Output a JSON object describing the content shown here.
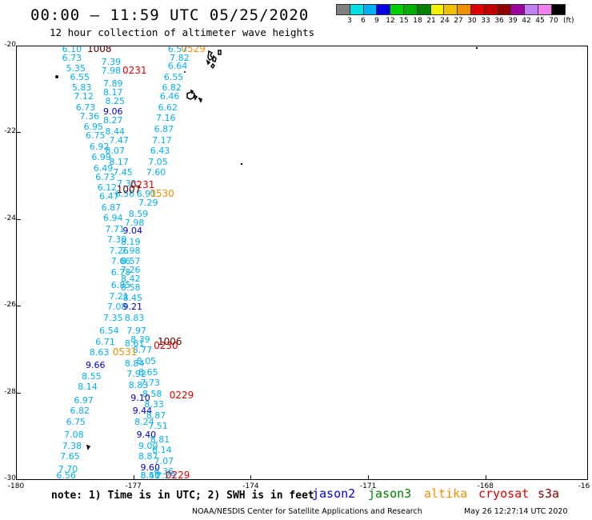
{
  "header": {
    "title": "00:00 – 11:59 UTC 05/25/2020",
    "subtitle": "12 hour collection of altimeter wave heights"
  },
  "colorbar": {
    "unit": "(ft)",
    "colors": [
      "#808080",
      "#00e0e0",
      "#00b0f0",
      "#0000e0",
      "#00d000",
      "#00b000",
      "#008000",
      "#f0f000",
      "#f0c000",
      "#f09000",
      "#e00000",
      "#c00000",
      "#900000",
      "#a000a0",
      "#c080f0",
      "#f080f0",
      "#000000"
    ],
    "labels": [
      "3",
      "6",
      "9",
      "12",
      "15",
      "18",
      "21",
      "24",
      "27",
      "30",
      "33",
      "36",
      "39",
      "42",
      "45",
      "70"
    ]
  },
  "map": {
    "lat_ticks": [
      "-20",
      "-22",
      "-24",
      "-26",
      "-28",
      "-30"
    ],
    "lon_ticks": [
      "-180",
      "-177",
      "-174",
      "-171",
      "-168",
      "-16"
    ],
    "lon_range": [
      -180,
      -165
    ],
    "lat_range": [
      -30,
      -20
    ]
  },
  "observations": [
    {
      "v": "6.10",
      "c": "#00b0f0",
      "lon": -178.8,
      "lat": -20.05
    },
    {
      "v": "6.73",
      "c": "#00b0f0",
      "lon": -178.8,
      "lat": -20.25
    },
    {
      "v": "5.35",
      "c": "#00b0f0",
      "lon": -178.7,
      "lat": -20.5
    },
    {
      "v": "6.55",
      "c": "#00b0f0",
      "lon": -178.6,
      "lat": -20.7
    },
    {
      "v": "5.83",
      "c": "#00b0f0",
      "lon": -178.55,
      "lat": -20.95
    },
    {
      "v": "7.12",
      "c": "#00b0f0",
      "lon": -178.5,
      "lat": -21.15
    },
    {
      "v": "6.73",
      "c": "#00b0f0",
      "lon": -178.45,
      "lat": -21.4
    },
    {
      "v": "7.36",
      "c": "#00b0f0",
      "lon": -178.35,
      "lat": -21.6
    },
    {
      "v": "6.95",
      "c": "#00b0f0",
      "lon": -178.25,
      "lat": -21.85
    },
    {
      "v": "6.75",
      "c": "#00b0f0",
      "lon": -178.2,
      "lat": -22.05
    },
    {
      "v": "6.92",
      "c": "#00b0f0",
      "lon": -178.1,
      "lat": -22.3
    },
    {
      "v": "6.99",
      "c": "#00b0f0",
      "lon": -178.05,
      "lat": -22.55
    },
    {
      "v": "6.49",
      "c": "#00b0f0",
      "lon": -178.0,
      "lat": -22.8
    },
    {
      "v": "6.73",
      "c": "#00b0f0",
      "lon": -177.95,
      "lat": -23.0
    },
    {
      "v": "6.12",
      "c": "#00b0f0",
      "lon": -177.9,
      "lat": -23.25
    },
    {
      "v": "6.47",
      "c": "#00b0f0",
      "lon": -177.85,
      "lat": -23.45
    },
    {
      "v": "6.87",
      "c": "#00b0f0",
      "lon": -177.8,
      "lat": -23.7
    },
    {
      "v": "6.94",
      "c": "#00b0f0",
      "lon": -177.75,
      "lat": -23.95
    },
    {
      "v": "7.71",
      "c": "#00b0f0",
      "lon": -177.7,
      "lat": -24.2
    },
    {
      "v": "7.30",
      "c": "#00b0f0",
      "lon": -177.65,
      "lat": -24.45
    },
    {
      "v": "7.26",
      "c": "#00b0f0",
      "lon": -177.6,
      "lat": -24.7
    },
    {
      "v": "7.66",
      "c": "#00b0f0",
      "lon": -177.55,
      "lat": -24.95
    },
    {
      "v": "6.78",
      "c": "#00b0f0",
      "lon": -177.55,
      "lat": -25.2
    },
    {
      "v": "6.85",
      "c": "#00b0f0",
      "lon": -177.55,
      "lat": -25.5
    },
    {
      "v": "7.21",
      "c": "#00b0f0",
      "lon": -177.6,
      "lat": -25.75
    },
    {
      "v": "7.08",
      "c": "#00b0f0",
      "lon": -177.65,
      "lat": -26.0
    },
    {
      "v": "7.35",
      "c": "#00b0f0",
      "lon": -177.75,
      "lat": -26.25
    },
    {
      "v": "6.54",
      "c": "#00b0f0",
      "lon": -177.85,
      "lat": -26.55
    },
    {
      "v": "6.71",
      "c": "#00b0f0",
      "lon": -177.95,
      "lat": -26.8
    },
    {
      "v": "8.63",
      "c": "#00b0f0",
      "lon": -178.1,
      "lat": -27.05
    },
    {
      "v": "9.66",
      "c": "#0000c0",
      "lon": -178.2,
      "lat": -27.35
    },
    {
      "v": "8.55",
      "c": "#00b0f0",
      "lon": -178.3,
      "lat": -27.6
    },
    {
      "v": "8.14",
      "c": "#00b0f0",
      "lon": -178.4,
      "lat": -27.85
    },
    {
      "v": "6.97",
      "c": "#00b0f0",
      "lon": -178.5,
      "lat": -28.15
    },
    {
      "v": "6.82",
      "c": "#00b0f0",
      "lon": -178.6,
      "lat": -28.4
    },
    {
      "v": "6.75",
      "c": "#00b0f0",
      "lon": -178.7,
      "lat": -28.65
    },
    {
      "v": "7.08",
      "c": "#00b0f0",
      "lon": -178.75,
      "lat": -28.95
    },
    {
      "v": "7.38",
      "c": "#00b0f0",
      "lon": -178.8,
      "lat": -29.2
    },
    {
      "v": "7.65",
      "c": "#00b0f0",
      "lon": -178.85,
      "lat": -29.45
    },
    {
      "v": "7.70",
      "c": "#00b0f0",
      "lon": -178.9,
      "lat": -29.75
    },
    {
      "v": "6.56",
      "c": "#00b0f0",
      "lon": -178.95,
      "lat": -30.0
    },
    {
      "v": "6.57",
      "c": "#00b0f0",
      "lon": -176.1,
      "lat": -20.0
    },
    {
      "v": "7.82",
      "c": "#00b0f0",
      "lon": -176.05,
      "lat": -20.25
    },
    {
      "v": "7.39",
      "c": "#00b0f0",
      "lon": -177.8,
      "lat": -20.35
    },
    {
      "v": "6.64",
      "c": "#00b0f0",
      "lon": -176.1,
      "lat": -20.45
    },
    {
      "v": "7.98",
      "c": "#00b0f0",
      "lon": -177.8,
      "lat": -20.55
    },
    {
      "v": "6.55",
      "c": "#00b0f0",
      "lon": -176.2,
      "lat": -20.7
    },
    {
      "v": "7.89",
      "c": "#00b0f0",
      "lon": -177.75,
      "lat": -20.85
    },
    {
      "v": "6.82",
      "c": "#00b0f0",
      "lon": -176.25,
      "lat": -20.95
    },
    {
      "v": "8.17",
      "c": "#00b0f0",
      "lon": -177.75,
      "lat": -21.05
    },
    {
      "v": "6.46",
      "c": "#00b0f0",
      "lon": -176.3,
      "lat": -21.15
    },
    {
      "v": "8.25",
      "c": "#00b0f0",
      "lon": -177.7,
      "lat": -21.25
    },
    {
      "v": "6.62",
      "c": "#00b0f0",
      "lon": -176.35,
      "lat": -21.4
    },
    {
      "v": "9.06",
      "c": "#0000c0",
      "lon": -177.75,
      "lat": -21.5
    },
    {
      "v": "7.16",
      "c": "#00b0f0",
      "lon": -176.4,
      "lat": -21.65
    },
    {
      "v": "8.27",
      "c": "#00b0f0",
      "lon": -177.75,
      "lat": -21.7
    },
    {
      "v": "6.87",
      "c": "#00b0f0",
      "lon": -176.45,
      "lat": -21.9
    },
    {
      "v": "8.44",
      "c": "#00b0f0",
      "lon": -177.7,
      "lat": -21.95
    },
    {
      "v": "7.47",
      "c": "#00b0f0",
      "lon": -177.6,
      "lat": -22.15
    },
    {
      "v": "7.17",
      "c": "#00b0f0",
      "lon": -176.5,
      "lat": -22.15
    },
    {
      "v": "8.07",
      "c": "#00b0f0",
      "lon": -177.7,
      "lat": -22.4
    },
    {
      "v": "6.43",
      "c": "#00b0f0",
      "lon": -176.55,
      "lat": -22.4
    },
    {
      "v": "8.17",
      "c": "#00b0f0",
      "lon": -177.6,
      "lat": -22.65
    },
    {
      "v": "7.05",
      "c": "#00b0f0",
      "lon": -176.6,
      "lat": -22.65
    },
    {
      "v": "7.45",
      "c": "#00b0f0",
      "lon": -177.5,
      "lat": -22.9
    },
    {
      "v": "7.60",
      "c": "#00b0f0",
      "lon": -176.65,
      "lat": -22.9
    },
    {
      "v": "7.38",
      "c": "#00b0f0",
      "lon": -177.4,
      "lat": -23.15
    },
    {
      "v": "6.56",
      "c": "#00b0f0",
      "lon": -177.45,
      "lat": -23.4
    },
    {
      "v": "6.91",
      "c": "#00b0f0",
      "lon": -176.9,
      "lat": -23.4
    },
    {
      "v": "7.29",
      "c": "#00b0f0",
      "lon": -176.85,
      "lat": -23.6
    },
    {
      "v": "8.59",
      "c": "#00b0f0",
      "lon": -177.1,
      "lat": -23.85
    },
    {
      "v": "7.98",
      "c": "#00b0f0",
      "lon": -177.2,
      "lat": -24.05
    },
    {
      "v": "9.04",
      "c": "#0000c0",
      "lon": -177.25,
      "lat": -24.25
    },
    {
      "v": "8.19",
      "c": "#00b0f0",
      "lon": -177.3,
      "lat": -24.5
    },
    {
      "v": "7.98",
      "c": "#00b0f0",
      "lon": -177.3,
      "lat": -24.7
    },
    {
      "v": "8.57",
      "c": "#00b0f0",
      "lon": -177.3,
      "lat": -24.95
    },
    {
      "v": "7.26",
      "c": "#00b0f0",
      "lon": -177.3,
      "lat": -25.15
    },
    {
      "v": "8.42",
      "c": "#00b0f0",
      "lon": -177.3,
      "lat": -25.35
    },
    {
      "v": "8.58",
      "c": "#00b0f0",
      "lon": -177.3,
      "lat": -25.55
    },
    {
      "v": "8.45",
      "c": "#00b0f0",
      "lon": -177.25,
      "lat": -25.8
    },
    {
      "v": "9.21",
      "c": "#0000c0",
      "lon": -177.25,
      "lat": -26.0
    },
    {
      "v": "8.83",
      "c": "#00b0f0",
      "lon": -177.2,
      "lat": -26.25
    },
    {
      "v": "7.97",
      "c": "#00b0f0",
      "lon": -177.15,
      "lat": -26.55
    },
    {
      "v": "8.39",
      "c": "#00b0f0",
      "lon": -177.05,
      "lat": -26.75
    },
    {
      "v": "8.61",
      "c": "#00b0f0",
      "lon": -177.2,
      "lat": -26.85
    },
    {
      "v": "8.77",
      "c": "#00b0f0",
      "lon": -177.0,
      "lat": -27.0
    },
    {
      "v": "8.05",
      "c": "#00b0f0",
      "lon": -176.9,
      "lat": -27.25
    },
    {
      "v": "8.84",
      "c": "#00b0f0",
      "lon": -177.2,
      "lat": -27.3
    },
    {
      "v": "8.65",
      "c": "#00b0f0",
      "lon": -176.85,
      "lat": -27.5
    },
    {
      "v": "7.92",
      "c": "#00b0f0",
      "lon": -177.15,
      "lat": -27.55
    },
    {
      "v": "7.73",
      "c": "#00b0f0",
      "lon": -176.8,
      "lat": -27.75
    },
    {
      "v": "8.83",
      "c": "#00b0f0",
      "lon": -177.1,
      "lat": -27.8
    },
    {
      "v": "8.58",
      "c": "#00b0f0",
      "lon": -176.75,
      "lat": -28.0
    },
    {
      "v": "9.10",
      "c": "#0000c0",
      "lon": -177.05,
      "lat": -28.1
    },
    {
      "v": "8.33",
      "c": "#00b0f0",
      "lon": -176.7,
      "lat": -28.25
    },
    {
      "v": "9.44",
      "c": "#0000c0",
      "lon": -177.0,
      "lat": -28.4
    },
    {
      "v": "8.87",
      "c": "#00b0f0",
      "lon": -176.65,
      "lat": -28.5
    },
    {
      "v": "8.24",
      "c": "#00b0f0",
      "lon": -176.95,
      "lat": -28.65
    },
    {
      "v": "7.51",
      "c": "#00b0f0",
      "lon": -176.6,
      "lat": -28.75
    },
    {
      "v": "9.40",
      "c": "#0000c0",
      "lon": -176.9,
      "lat": -28.95
    },
    {
      "v": "8.81",
      "c": "#00b0f0",
      "lon": -176.55,
      "lat": -29.05
    },
    {
      "v": "9.00",
      "c": "#00b0f0",
      "lon": -176.85,
      "lat": -29.2
    },
    {
      "v": "6.14",
      "c": "#00b0f0",
      "lon": -176.5,
      "lat": -29.3
    },
    {
      "v": "8.87",
      "c": "#00b0f0",
      "lon": -176.85,
      "lat": -29.45
    },
    {
      "v": "7.07",
      "c": "#00b0f0",
      "lon": -176.45,
      "lat": -29.55
    },
    {
      "v": "9.60",
      "c": "#0000c0",
      "lon": -176.8,
      "lat": -29.7
    },
    {
      "v": "6.36",
      "c": "#00b0f0",
      "lon": -176.45,
      "lat": -29.8
    },
    {
      "v": "8.50",
      "c": "#00b0f0",
      "lon": -176.8,
      "lat": -29.95
    },
    {
      "v": "7.29",
      "c": "#00b0f0",
      "lon": -176.4,
      "lat": -30.05
    },
    {
      "v": "8.41",
      "c": "#00b0f0",
      "lon": -176.8,
      "lat": -30.15
    }
  ],
  "pass_times": [
    {
      "t": "1008",
      "c": "#600000",
      "lon": -178.2,
      "lat": -20.05
    },
    {
      "t": "0529",
      "c": "#f09000",
      "lon": -175.8,
      "lat": -20.0
    },
    {
      "t": "0231",
      "c": "#e00000",
      "lon": -177.3,
      "lat": -20.55
    },
    {
      "t": "0231",
      "c": "#e00000",
      "lon": -177.1,
      "lat": -23.2
    },
    {
      "t": "1007",
      "c": "#600000",
      "lon": -177.45,
      "lat": -23.3
    },
    {
      "t": "0530",
      "c": "#f09000",
      "lon": -176.6,
      "lat": -23.4
    },
    {
      "t": "1006",
      "c": "#600000",
      "lon": -176.4,
      "lat": -26.8
    },
    {
      "t": "0230",
      "c": "#e00000",
      "lon": -176.5,
      "lat": -26.9
    },
    {
      "t": "0531",
      "c": "#f09000",
      "lon": -177.55,
      "lat": -27.05
    },
    {
      "t": "0229",
      "c": "#e00000",
      "lon": -176.1,
      "lat": -28.05
    },
    {
      "t": "0229",
      "c": "#e00000",
      "lon": -176.2,
      "lat": -30.1
    }
  ],
  "footer": {
    "note": "note: 1) Time is in UTC; 2) SWH is in feet",
    "legend": [
      {
        "name": "jason2",
        "c": "#0000e0"
      },
      {
        "name": "jason3",
        "c": "#008000"
      },
      {
        "name": "altika",
        "c": "#f09000"
      },
      {
        "name": "cryosat",
        "c": "#e00000"
      },
      {
        "name": "s3a",
        "c": "#800000"
      }
    ],
    "credit": "NOAA/NESDIS Center for Satellite Applications and Research",
    "stamp": "May 26 12:27:14 UTC 2020"
  }
}
